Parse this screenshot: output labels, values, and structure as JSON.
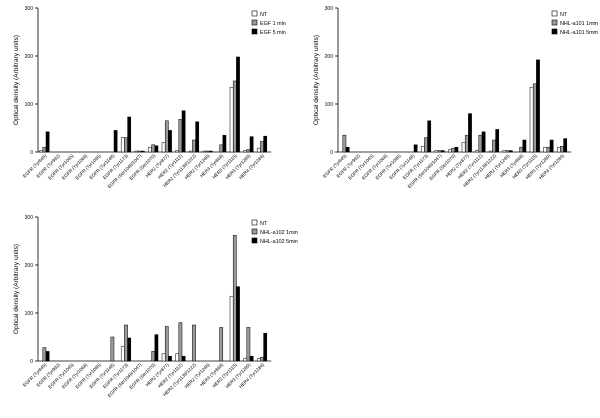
{
  "chart_data": [
    {
      "type": "bar",
      "ylabel": "Optical density (Arbitrary units)",
      "ylim": [
        0,
        300
      ],
      "yticks": [
        0,
        100,
        200,
        300
      ],
      "categories": [
        "EGFR (Tyr845)",
        "EGFR (Tyr992)",
        "EGFR (Tyr1045)",
        "EGFR (Tyr1068)",
        "EGFR (Tyr1086)",
        "EGFR (Tyr1148)",
        "EGFR (Tyr1173)",
        "EGFR (Ser1046/1047)",
        "EGFR (Ser1070)",
        "HER2 (Tyr877)",
        "HER2 (Tyr1112)",
        "HER2 (Tyr1139/1222)",
        "HER2 (Tyr1248)",
        "HER3 (Tyr868)",
        "HER3 (Tyr1115)",
        "HER3 (Tyr1289)",
        "HER4 (Tyr1284)"
      ],
      "legend_position": "top-right",
      "series": [
        {
          "name": "NT",
          "color": "#ffffff",
          "values": [
            3,
            0,
            0,
            0,
            0,
            0,
            30,
            2,
            10,
            20,
            3,
            2,
            2,
            0,
            135,
            3,
            8
          ]
        },
        {
          "name": "EGF 1 min",
          "color": "#9a9a9a",
          "values": [
            10,
            0,
            0,
            0,
            0,
            0,
            30,
            2,
            15,
            65,
            68,
            25,
            2,
            15,
            148,
            5,
            22
          ]
        },
        {
          "name": "EGF 5 min",
          "color": "#000000",
          "values": [
            42,
            0,
            0,
            0,
            0,
            45,
            73,
            2,
            13,
            45,
            86,
            63,
            2,
            35,
            198,
            32,
            33
          ]
        }
      ]
    },
    {
      "type": "bar",
      "ylabel": "Optical density (Arbitrary units)",
      "ylim": [
        0,
        300
      ],
      "yticks": [
        0,
        100,
        200,
        300
      ],
      "categories": [
        "EGFR (Tyr845)",
        "EGFR (Tyr992)",
        "EGFR (Tyr1045)",
        "EGFR (Tyr1068)",
        "EGFR (Tyr1086)",
        "EGFR (Tyr1148)",
        "EGFR (Tyr1173)",
        "EGFR (Ser1046/1047)",
        "EGFR (Ser1070)",
        "HER2 (Tyr877)",
        "HER2 (Tyr1112)",
        "HER2 (Tyr1139/1222)",
        "HER2 (Tyr1248)",
        "HER3 (Tyr868)",
        "HER3 (Tyr1115)",
        "HER3 (Tyr1289)",
        "HER4 (Tyr1284)"
      ],
      "legend_position": "top-right",
      "series": [
        {
          "name": "NT",
          "color": "#ffffff",
          "values": [
            0,
            0,
            0,
            0,
            0,
            0,
            12,
            3,
            5,
            20,
            3,
            2,
            3,
            0,
            135,
            10,
            10
          ]
        },
        {
          "name": "NHL-a101 1mm",
          "color": "#9a9a9a",
          "values": [
            35,
            0,
            0,
            0,
            0,
            0,
            30,
            3,
            8,
            35,
            35,
            25,
            3,
            10,
            142,
            10,
            12
          ]
        },
        {
          "name": "NHL-a101 5mm",
          "color": "#000000",
          "values": [
            10,
            0,
            0,
            0,
            0,
            15,
            65,
            3,
            10,
            80,
            42,
            47,
            3,
            25,
            192,
            25,
            28
          ]
        }
      ]
    },
    {
      "type": "bar",
      "ylabel": "Optical density (Arbitrary units)",
      "ylim": [
        0,
        300
      ],
      "yticks": [
        0,
        100,
        200,
        300
      ],
      "categories": [
        "EGFR (Tyr845)",
        "EGFR (Tyr992)",
        "EGFR (Tyr1045)",
        "EGFR (Tyr1068)",
        "EGFR (Tyr1086)",
        "EGFR (Tyr1148)",
        "EGFR (Tyr1173)",
        "EGFR (Ser1046/1047)",
        "EGFR (Ser1070)",
        "HER2 (Tyr877)",
        "HER2 (Tyr1112)",
        "HER2 (Tyr1139/1222)",
        "HER2 (Tyr1248)",
        "HER3 (Tyr868)",
        "HER3 (Tyr1115)",
        "HER3 (Tyr1289)",
        "HER4 (Tyr1284)"
      ],
      "legend_position": "top-right",
      "series": [
        {
          "name": "NT",
          "color": "#ffffff",
          "values": [
            0,
            0,
            0,
            0,
            0,
            0,
            30,
            0,
            0,
            15,
            15,
            0,
            0,
            0,
            135,
            5,
            5
          ]
        },
        {
          "name": "NHL-a102 1min",
          "color": "#9a9a9a",
          "values": [
            28,
            0,
            0,
            0,
            0,
            50,
            75,
            0,
            20,
            72,
            80,
            75,
            0,
            70,
            262,
            70,
            8
          ]
        },
        {
          "name": "NHL-a102 5min",
          "color": "#000000",
          "values": [
            20,
            0,
            0,
            0,
            0,
            0,
            48,
            0,
            55,
            10,
            10,
            0,
            0,
            0,
            155,
            10,
            58
          ]
        }
      ]
    }
  ]
}
